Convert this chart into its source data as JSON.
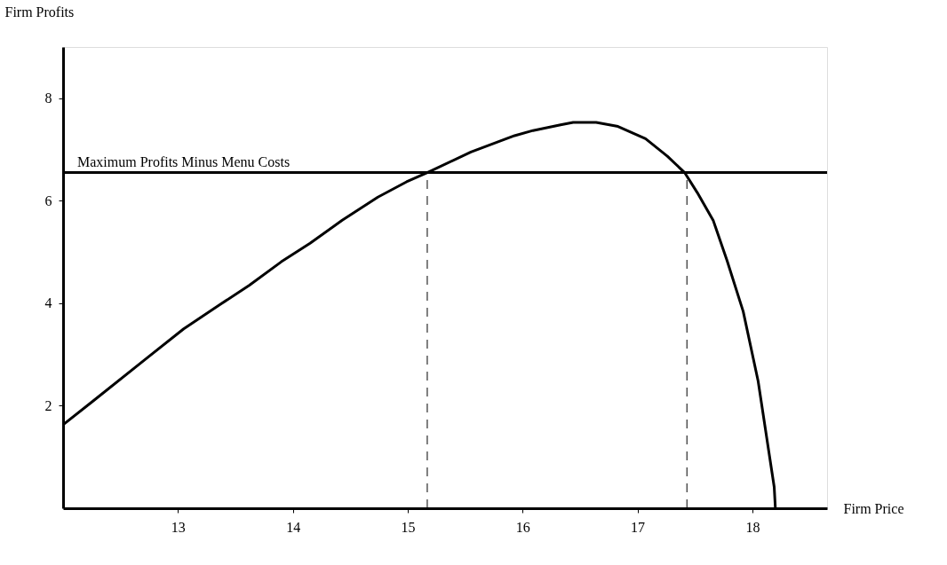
{
  "chart_data": {
    "type": "line",
    "xlabel": "Firm Price",
    "ylabel": "Firm Profits",
    "x": [
      12.0,
      12.26,
      12.74,
      13.05,
      13.37,
      13.62,
      13.9,
      14.15,
      14.43,
      14.74,
      14.99,
      15.17,
      15.55,
      15.93,
      16.09,
      16.33,
      16.44,
      16.64,
      16.83,
      17.07,
      17.26,
      17.41,
      17.52,
      17.66,
      17.78,
      17.92,
      18.05,
      18.19,
      18.2
    ],
    "series": [
      {
        "color": "#000000",
        "values": [
          1.63,
          2.09,
          2.95,
          3.5,
          3.98,
          4.35,
          4.81,
          5.17,
          5.62,
          6.07,
          6.37,
          6.55,
          6.95,
          7.27,
          7.37,
          7.48,
          7.53,
          7.53,
          7.45,
          7.21,
          6.87,
          6.55,
          6.16,
          5.61,
          4.83,
          3.84,
          2.48,
          0.41,
          0
        ]
      }
    ],
    "xlim": [
      12,
      18.65
    ],
    "ylim": [
      0,
      9
    ],
    "xticks": [
      13,
      14,
      15,
      16,
      17,
      18
    ],
    "yticks": [
      2,
      4,
      6,
      8
    ],
    "ref_lines": [
      {
        "axis": "y",
        "value": 6.55,
        "label": "Maximum Profits Minus Menu Costs",
        "color": "#000000",
        "line_style": "solid"
      },
      {
        "axis": "x",
        "value": 15.17,
        "color": "#000000",
        "line_style": "dashed"
      },
      {
        "axis": "x",
        "value": 17.43,
        "color": "#000000",
        "line_style": "dashed"
      }
    ],
    "grid": false,
    "marker": "none",
    "line_style": "solid"
  }
}
